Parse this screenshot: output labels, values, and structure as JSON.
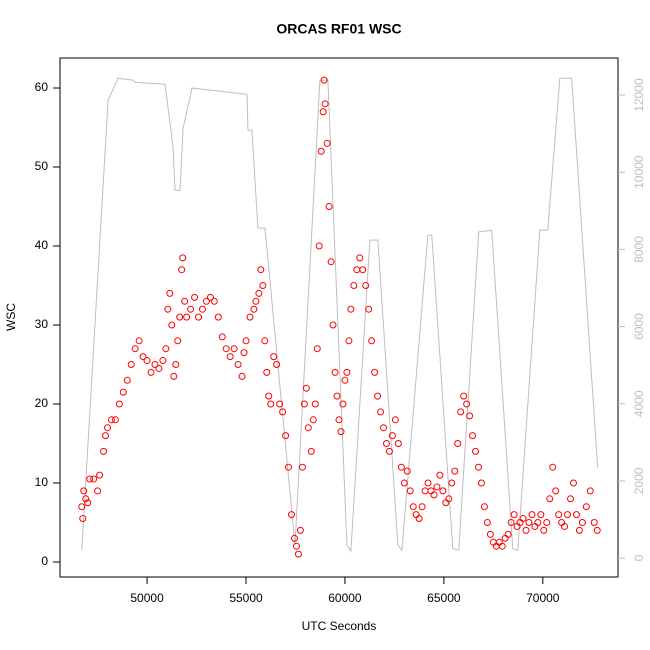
{
  "chart_data": {
    "type": "scatter",
    "title": "ORCAS RF01 WSC",
    "x_label": "UTC Seconds",
    "y_label": "WSC",
    "xlim": [
      45600,
      73800
    ],
    "ylim": [
      -1.9,
      63.8
    ],
    "y2lim": [
      -490,
      12960
    ],
    "xticks": [
      50000,
      55000,
      60000,
      65000,
      70000
    ],
    "yticks": [
      0,
      10,
      20,
      30,
      40,
      50,
      60
    ],
    "y2ticks": [
      0,
      2000,
      4000,
      6000,
      8000,
      10000,
      12000
    ],
    "y2_color": "#bebebe",
    "series": [
      {
        "color": "#bebebe",
        "style": "line",
        "axis": "y2",
        "x": [
          46700,
          48030,
          48535,
          49290,
          49390,
          50910,
          51310,
          51415,
          51665,
          51820,
          52270,
          55050,
          55100,
          55300,
          55600,
          55960,
          57475,
          58735,
          59140,
          60100,
          60300,
          61260,
          61665,
          62675,
          62880,
          64190,
          64390,
          65450,
          65750,
          66760,
          67420,
          68480,
          68735,
          69850,
          70250,
          70860,
          71460,
          72775
        ],
        "values": [
          200,
          11865,
          12435,
          12385,
          12330,
          12280,
          10670,
          9530,
          9530,
          11140,
          12180,
          12020,
          11090,
          11090,
          8550,
          8550,
          340,
          12385,
          12385,
          340,
          180,
          8240,
          8240,
          340,
          200,
          8370,
          8370,
          250,
          200,
          8450,
          8500,
          250,
          200,
          8500,
          8500,
          12435,
          12435,
          2330
        ]
      },
      {
        "color": "#ff0000",
        "style": "points",
        "x": [
          46700,
          46750,
          46800,
          46900,
          47000,
          47100,
          47300,
          47500,
          47600,
          47800,
          47900,
          48000,
          48200,
          48400,
          48600,
          48800,
          49000,
          49200,
          49400,
          49600,
          49800,
          50000,
          50200,
          50400,
          50600,
          50800,
          50950,
          51050,
          51150,
          51250,
          51350,
          51450,
          51550,
          51650,
          51750,
          51800,
          51900,
          52000,
          52200,
          52400,
          52600,
          52800,
          53000,
          53200,
          53400,
          53600,
          53800,
          54000,
          54200,
          54400,
          54600,
          54800,
          54900,
          55000,
          55200,
          55400,
          55500,
          55650,
          55750,
          55850,
          55950,
          56050,
          56150,
          56250,
          56400,
          56550,
          56700,
          56850,
          57000,
          57150,
          57300,
          57450,
          57550,
          57650,
          57750,
          57850,
          57950,
          58050,
          58150,
          58300,
          58400,
          58500,
          58600,
          58700,
          58800,
          58900,
          58950,
          59000,
          59100,
          59200,
          59300,
          59400,
          59500,
          59600,
          59700,
          59800,
          59900,
          60000,
          60100,
          60200,
          60300,
          60450,
          60600,
          60750,
          60900,
          61050,
          61200,
          61350,
          61500,
          61650,
          61800,
          61950,
          62100,
          62250,
          62400,
          62550,
          62700,
          62850,
          63000,
          63150,
          63300,
          63450,
          63600,
          63750,
          63900,
          64050,
          64200,
          64350,
          64500,
          64650,
          64800,
          64950,
          65100,
          65250,
          65400,
          65550,
          65700,
          65850,
          66000,
          66150,
          66300,
          66450,
          66600,
          66750,
          66900,
          67050,
          67200,
          67350,
          67500,
          67650,
          67800,
          67950,
          68100,
          68250,
          68400,
          68550,
          68700,
          68850,
          69000,
          69150,
          69300,
          69450,
          69600,
          69750,
          69900,
          70050,
          70200,
          70350,
          70500,
          70650,
          70800,
          70950,
          71100,
          71250,
          71400,
          71550,
          71700,
          71850,
          72000,
          72200,
          72400,
          72600,
          72750
        ],
        "values": [
          7,
          5.5,
          9,
          8,
          7.5,
          10.5,
          10.5,
          9,
          11,
          14,
          16,
          17,
          18,
          18,
          20,
          21.5,
          23,
          25,
          27,
          28,
          26,
          25.5,
          24,
          25,
          24.5,
          25.5,
          27,
          32,
          34,
          30,
          23.5,
          25,
          28,
          31,
          37,
          38.5,
          33,
          31,
          32,
          33.5,
          31,
          32,
          33,
          33.5,
          33,
          31,
          28.5,
          27,
          26,
          27,
          25,
          23.5,
          26.5,
          28,
          31,
          32,
          33,
          34,
          37,
          35,
          28,
          24,
          21,
          20,
          26,
          25,
          20,
          19,
          16,
          12,
          6,
          3,
          2,
          1,
          4,
          12,
          20,
          22,
          17,
          14,
          18,
          20,
          27,
          40,
          52,
          57,
          61,
          58,
          53,
          45,
          38,
          30,
          24,
          21,
          18,
          16.5,
          20,
          23,
          24,
          28,
          32,
          35,
          37,
          38.5,
          37,
          35,
          32,
          28,
          24,
          21,
          19,
          17,
          15,
          14,
          16,
          18,
          15,
          12,
          10,
          11.5,
          9,
          7,
          6,
          5.5,
          7,
          9,
          10,
          9,
          8.5,
          9.5,
          11,
          9,
          7.5,
          8,
          10,
          11.5,
          15,
          19,
          21,
          20,
          18.5,
          16,
          14,
          12,
          10,
          7,
          5,
          3.5,
          2.5,
          2,
          2.5,
          2,
          3,
          3.5,
          5,
          6,
          4.5,
          5,
          5.5,
          4,
          5,
          6,
          4.5,
          5,
          6,
          4,
          5,
          8,
          12,
          9,
          6,
          5,
          4.5,
          6,
          8,
          10,
          6,
          4,
          5,
          7,
          9,
          5,
          4
        ]
      }
    ]
  }
}
